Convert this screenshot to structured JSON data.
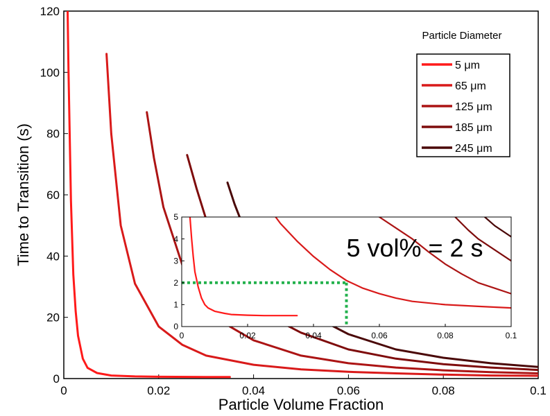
{
  "chart_data": [
    {
      "type": "line",
      "xlabel": "Particle Volume Fraction",
      "ylabel": "Time to Transition (s)",
      "xlim": [
        0,
        0.1
      ],
      "ylim": [
        0,
        120
      ],
      "x_ticks": [
        "0",
        "0.02",
        "0.04",
        "0.06",
        "0.08",
        "0.1"
      ],
      "y_ticks": [
        "0",
        "20",
        "40",
        "60",
        "80",
        "100",
        "120"
      ],
      "grid": false,
      "legend": {
        "title": "Particle Diameter",
        "placement": "top-right",
        "entries": [
          "5 μm",
          "65 μm",
          "125 μm",
          "185 μm",
          "245 μm"
        ]
      },
      "series": [
        {
          "name": "5 μm",
          "color": "#ff1a1a",
          "x": [
            0.0008,
            0.001,
            0.0015,
            0.002,
            0.0025,
            0.003,
            0.004,
            0.005,
            0.007,
            0.01,
            0.015,
            0.02,
            0.03,
            0.035
          ],
          "y": [
            120,
            100,
            58,
            34,
            22,
            14,
            6.5,
            3.5,
            1.8,
            1.0,
            0.7,
            0.6,
            0.5,
            0.5
          ]
        },
        {
          "name": "65 μm",
          "color": "#d91a1a",
          "x": [
            0.009,
            0.01,
            0.012,
            0.015,
            0.02,
            0.025,
            0.03,
            0.04,
            0.05,
            0.06,
            0.07,
            0.08,
            0.09,
            0.1
          ],
          "y": [
            106,
            80,
            50,
            31,
            17,
            11,
            7.5,
            4.5,
            3.0,
            2.2,
            1.7,
            1.3,
            1.0,
            0.9
          ]
        },
        {
          "name": "125 μm",
          "color": "#ac1414",
          "x": [
            0.0175,
            0.019,
            0.021,
            0.025,
            0.03,
            0.035,
            0.04,
            0.05,
            0.06,
            0.07,
            0.08,
            0.09,
            0.1
          ],
          "y": [
            87,
            72,
            56,
            37,
            24,
            17,
            12.5,
            7.5,
            5.0,
            3.6,
            2.7,
            2.1,
            1.7
          ]
        },
        {
          "name": "185 μm",
          "color": "#7e0c0c",
          "x": [
            0.026,
            0.028,
            0.03,
            0.033,
            0.036,
            0.04,
            0.045,
            0.05,
            0.06,
            0.07,
            0.08,
            0.09,
            0.1
          ],
          "y": [
            73,
            62,
            52,
            42,
            34,
            26,
            19,
            15,
            9.5,
            6.5,
            4.7,
            3.6,
            2.8
          ]
        },
        {
          "name": "245 μm",
          "color": "#4a0808",
          "x": [
            0.0345,
            0.036,
            0.038,
            0.04,
            0.045,
            0.05,
            0.055,
            0.06,
            0.07,
            0.08,
            0.09,
            0.1
          ],
          "y": [
            64,
            57,
            49,
            42,
            31,
            24,
            18.5,
            14.5,
            9.5,
            6.8,
            5.0,
            3.8
          ]
        }
      ]
    },
    {
      "type": "line",
      "xlim": [
        0,
        0.1
      ],
      "ylim": [
        0,
        5
      ],
      "x_ticks": [
        "0",
        "0.02",
        "0.04",
        "0.06",
        "0.08",
        "0.1"
      ],
      "y_ticks": [
        "0",
        "1",
        "2",
        "3",
        "4",
        "5"
      ],
      "grid": false,
      "annotation": "5 vol% = 2 s",
      "marker_lines": {
        "x": 0.05,
        "y": 2,
        "color": "#22b14c"
      },
      "series": [
        {
          "name": "5 μm",
          "color": "#ff1a1a",
          "x": [
            0.0025,
            0.003,
            0.0035,
            0.004,
            0.005,
            0.006,
            0.007,
            0.008,
            0.01,
            0.013,
            0.015,
            0.02,
            0.025,
            0.03,
            0.035
          ],
          "y": [
            5,
            4.0,
            3.2,
            2.5,
            1.8,
            1.3,
            1.0,
            0.85,
            0.7,
            0.6,
            0.55,
            0.52,
            0.5,
            0.5,
            0.5
          ]
        },
        {
          "name": "65 μm",
          "color": "#d91a1a",
          "x": [
            0.0285,
            0.03,
            0.035,
            0.04,
            0.045,
            0.05,
            0.055,
            0.06,
            0.065,
            0.07,
            0.08,
            0.09,
            0.1
          ],
          "y": [
            5,
            4.7,
            3.9,
            3.2,
            2.6,
            2.1,
            1.75,
            1.5,
            1.3,
            1.15,
            1.0,
            0.92,
            0.85
          ]
        },
        {
          "name": "125 μm",
          "color": "#ac1414",
          "x": [
            0.06,
            0.065,
            0.07,
            0.075,
            0.08,
            0.085,
            0.09,
            0.095,
            0.1
          ],
          "y": [
            5,
            4.5,
            4.0,
            3.4,
            2.85,
            2.4,
            2.0,
            1.75,
            1.5
          ]
        },
        {
          "name": "185 μm",
          "color": "#7e0c0c",
          "x": [
            0.083,
            0.087,
            0.09,
            0.095,
            0.1
          ],
          "y": [
            5,
            4.4,
            4.0,
            3.5,
            3.0
          ]
        },
        {
          "name": "245 μm",
          "color": "#4a0808",
          "x": [
            0.092,
            0.095,
            0.1
          ],
          "y": [
            5,
            4.6,
            4.1
          ]
        }
      ]
    }
  ]
}
